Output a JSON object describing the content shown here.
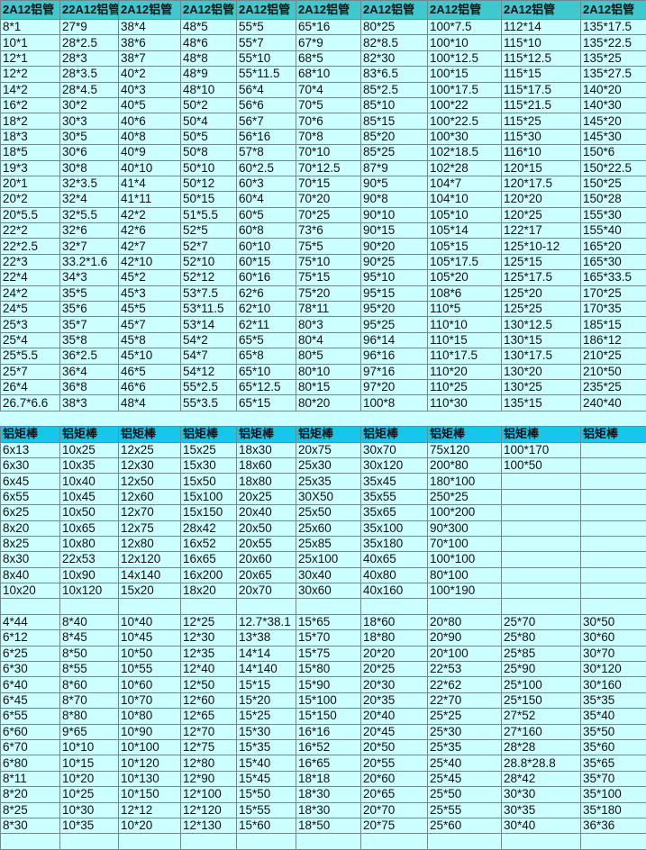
{
  "sections": [
    {
      "header": [
        "2A12铝管",
        "22A12铝管",
        "2A12铝管",
        "2A12铝管",
        "2A12铝管",
        "2A12铝管",
        "2A12铝管",
        "2A12铝管",
        "2A12铝管",
        "2A12铝管"
      ],
      "rows": [
        [
          "8*1",
          "27*9",
          "38*4",
          "48*5",
          "55*5",
          "65*16",
          "80*25",
          "100*7.5",
          "112*14",
          "135*17.5"
        ],
        [
          "10*1",
          "28*2.5",
          "38*6",
          "48*6",
          "55*7",
          "67*9",
          "82*8.5",
          "100*10",
          "115*10",
          "135*22.5"
        ],
        [
          "12*1",
          "28*3",
          "38*7",
          "48*8",
          "55*10",
          "68*5",
          "82*30",
          "100*12.5",
          "115*12.5",
          "135*25"
        ],
        [
          "12*2",
          "28*3.5",
          "40*2",
          "48*9",
          "55*11.5",
          "68*10",
          "83*6.5",
          "100*15",
          "115*15",
          "135*27.5"
        ],
        [
          "14*2",
          "28*4.5",
          "40*3",
          "48*10",
          "56*4",
          "70*4",
          "85*2.5",
          "100*17.5",
          "115*17.5",
          "140*20"
        ],
        [
          "16*2",
          "30*2",
          "40*5",
          "50*2",
          "56*6",
          "70*5",
          "85*10",
          "100*22",
          "115*21.5",
          "140*30"
        ],
        [
          "18*2",
          "30*3",
          "40*6",
          "50*4",
          "56*7",
          "70*6",
          "85*15",
          "100*22.5",
          "115*25",
          "145*20"
        ],
        [
          "18*3",
          "30*5",
          "40*8",
          "50*5",
          "56*16",
          "70*8",
          "85*20",
          "100*30",
          "115*30",
          "145*30"
        ],
        [
          "18*5",
          "30*6",
          "40*9",
          "50*8",
          "57*8",
          "70*10",
          "85*25",
          "102*18.5",
          "116*10",
          "150*6"
        ],
        [
          "19*3",
          "30*8",
          "40*10",
          "50*10",
          "60*2.5",
          "70*12.5",
          "87*9",
          "102*28",
          "120*15",
          "150*22.5"
        ],
        [
          "20*1",
          "32*3.5",
          "41*4",
          "50*12",
          "60*3",
          "70*15",
          "90*5",
          "104*7",
          "120*17.5",
          "150*25"
        ],
        [
          "20*2",
          "32*4",
          "41*11",
          "50*15",
          "60*4",
          "70*20",
          "90*8",
          "104*10",
          "120*20",
          "150*28"
        ],
        [
          "20*5.5",
          "32*5.5",
          "42*2",
          "51*5.5",
          "60*5",
          "70*25",
          "90*10",
          "105*10",
          "120*25",
          "155*30"
        ],
        [
          "22*2",
          "32*6",
          "42*6",
          "52*5",
          "60*8",
          "73*6",
          "90*15",
          "105*14",
          "122*17",
          "155*40"
        ],
        [
          "22*2.5",
          "32*7",
          "42*7",
          "52*7",
          "60*10",
          "75*5",
          "90*20",
          "105*15",
          "125*10-12",
          "165*20"
        ],
        [
          "22*3",
          "33.2*1.6",
          "42*10",
          "52*10",
          "60*15",
          "75*10",
          "90*25",
          "105*17.5",
          "125*15",
          "165*30"
        ],
        [
          "22*4",
          "34*3",
          "45*2",
          "52*12",
          "60*16",
          "75*15",
          "95*10",
          "105*20",
          "125*17.5",
          "165*33.5"
        ],
        [
          "24*2",
          "35*5",
          "45*3",
          "53*7.5",
          "62*6",
          "75*20",
          "95*15",
          "108*6",
          "125*20",
          "170*25"
        ],
        [
          "24*5",
          "35*6",
          "45*5",
          "53*11.5",
          "62*10",
          "78*11",
          "95*20",
          "110*5",
          "125*25",
          "170*35"
        ],
        [
          "25*3",
          "35*7",
          "45*7",
          "53*14",
          "62*11",
          "80*3",
          "95*25",
          "110*10",
          "130*12.5",
          "185*15"
        ],
        [
          "25*4",
          "35*8",
          "45*8",
          "54*2",
          "65*5",
          "80*4",
          "96*14",
          "110*15",
          "130*15",
          "186*12"
        ],
        [
          "25*5.5",
          "36*2.5",
          "45*10",
          "54*7",
          "65*8",
          "80*5",
          "96*16",
          "110*17.5",
          "130*17.5",
          "210*25"
        ],
        [
          "25*7",
          "36*4",
          "46*5",
          "54*12",
          "65*10",
          "80*10",
          "97*16",
          "110*20",
          "130*20",
          "210*50"
        ],
        [
          "26*4",
          "36*8",
          "46*6",
          "55*2.5",
          "65*12.5",
          "80*15",
          "97*20",
          "110*25",
          "130*25",
          "235*25"
        ],
        [
          "26.7*6.6",
          "38*3",
          "48*4",
          "55*3.5",
          "65*15",
          "80*20",
          "100*8",
          "110*30",
          "135*15",
          "240*40"
        ]
      ]
    },
    {
      "header": [
        "铝矩棒",
        "铝矩棒",
        "铝矩棒",
        "铝矩棒",
        "铝矩棒",
        "铝矩棒",
        "铝矩棒",
        "铝矩棒",
        "铝矩棒",
        "铝矩棒"
      ],
      "rows": [
        [
          "6x13",
          "10x25",
          "12x25",
          "15x25",
          "18x30",
          "20x75",
          "30x70",
          "75x120",
          "100*170",
          ""
        ],
        [
          "6x30",
          "10x35",
          "12x30",
          "15x30",
          "18x60",
          "25x30",
          "30x120",
          "200*80",
          "100*50",
          ""
        ],
        [
          "6x45",
          "10x40",
          "12x50",
          "15x50",
          "18x80",
          "25x35",
          "35x45",
          "180*100",
          "",
          ""
        ],
        [
          "6x55",
          "10x45",
          "12x60",
          "15x100",
          "20x25",
          "30X50",
          "35x55",
          "250*25",
          "",
          ""
        ],
        [
          "6x25",
          "10x50",
          "12x70",
          "15x150",
          "20x40",
          "25x50",
          "35x65",
          "100*200",
          "",
          ""
        ],
        [
          "8x20",
          "10x65",
          "12x75",
          "28x42",
          "20x50",
          "25x60",
          "35x100",
          "90*300",
          "",
          ""
        ],
        [
          "8x25",
          "10x80",
          "12x80",
          "16x52",
          "20x55",
          "25x85",
          "35x180",
          "70*100",
          "",
          ""
        ],
        [
          "8x30",
          "22x53",
          "12x120",
          "16x65",
          "20x60",
          "25x100",
          "40x65",
          "100*100",
          "",
          ""
        ],
        [
          "8x40",
          "10x90",
          "14x140",
          "16x200",
          "20x65",
          "30x40",
          "40x80",
          "80*100",
          "",
          ""
        ],
        [
          "10x20",
          "10x120",
          "15x20",
          "18x20",
          "20x70",
          "30x60",
          "40x160",
          "100*190",
          "",
          ""
        ]
      ]
    },
    {
      "rows": [
        [
          "4*44",
          "8*40",
          "10*40",
          "12*25",
          "12.7*38.1",
          "15*65",
          "18*60",
          "20*80",
          "25*70",
          "30*50"
        ],
        [
          "6*12",
          "8*45",
          "10*45",
          "12*30",
          "13*38",
          "15*70",
          "18*80",
          "20*90",
          "25*80",
          "30*60"
        ],
        [
          "6*25",
          "8*50",
          "10*50",
          "12*35",
          "14*14",
          "15*75",
          "20*20",
          "20*100",
          "25*85",
          "30*70"
        ],
        [
          "6*30",
          "8*55",
          "10*55",
          "12*40",
          "14*140",
          "15*80",
          "20*25",
          "22*53",
          "25*90",
          "30*120"
        ],
        [
          "6*40",
          "8*60",
          "10*60",
          "12*50",
          "15*15",
          "15*90",
          "20*30",
          "22*62",
          "25*100",
          "30*160"
        ],
        [
          "6*45",
          "8*70",
          "10*70",
          "12*60",
          "15*20",
          "15*100",
          "20*35",
          "22*70",
          "25*150",
          "35*35"
        ],
        [
          "6*55",
          "8*80",
          "10*80",
          "12*65",
          "15*25",
          "15*150",
          "20*40",
          "25*25",
          "27*52",
          "35*40"
        ],
        [
          "6*60",
          "9*65",
          "10*90",
          "12*70",
          "15*30",
          "16*16",
          "20*45",
          "25*30",
          "27*160",
          "35*50"
        ],
        [
          "6*70",
          "10*10",
          "10*100",
          "12*75",
          "15*35",
          "16*52",
          "20*50",
          "25*35",
          "28*28",
          "35*60"
        ],
        [
          "6*80",
          "10*15",
          "10*120",
          "12*80",
          "15*40",
          "16*65",
          "20*55",
          "25*40",
          "28.8*28.8",
          "35*65"
        ],
        [
          "8*11",
          "10*20",
          "10*130",
          "12*90",
          "15*45",
          "18*18",
          "20*60",
          "25*45",
          "28*42",
          "35*70"
        ],
        [
          "8*20",
          "10*25",
          "10*150",
          "12*100",
          "15*50",
          "18*30",
          "20*65",
          "25*50",
          "30*30",
          "35*100"
        ],
        [
          "8*25",
          "10*30",
          "12*12",
          "12*120",
          "15*55",
          "18*30",
          "20*70",
          "25*55",
          "30*35",
          "35*180"
        ],
        [
          "8*30",
          "10*35",
          "10*20",
          "12*130",
          "15*60",
          "18*50",
          "20*75",
          "25*60",
          "30*40",
          "36*36"
        ]
      ]
    }
  ]
}
